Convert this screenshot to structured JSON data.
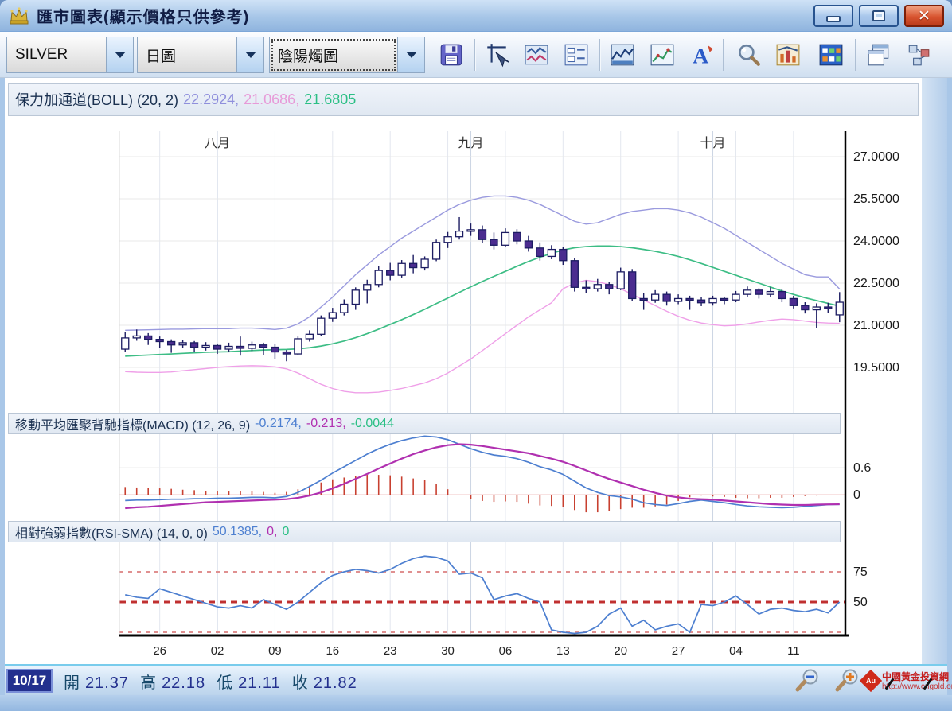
{
  "window": {
    "title": "匯市圖表(顯示價格只供參考)",
    "buttons": {
      "minimize": "minimize",
      "maximize": "maximize",
      "close": "close"
    }
  },
  "toolbar": {
    "symbol_select": "SILVER",
    "period_select": "日圖",
    "chart_type_select": "陰陽燭圖",
    "icons": [
      "save",
      "crosshair-draw",
      "indicator-lines",
      "data-table",
      "area-chart",
      "line-chart",
      "text-annotation",
      "magnifier",
      "pattern-chart",
      "grid-view",
      "cascade-windows",
      "layout-tree"
    ]
  },
  "indicators": {
    "boll": {
      "label": "保力加通道(BOLL) (20, 2)",
      "values": [
        "22.2924,",
        "21.0686,",
        "21.6805"
      ]
    },
    "macd": {
      "label": "移動平均匯聚背馳指標(MACD) (12, 26, 9)",
      "values": [
        "-0.2174,",
        "-0.213,",
        "-0.0044"
      ]
    },
    "rsi": {
      "label": "相對強弱指數(RSI-SMA) (14, 0, 0)",
      "values": [
        "50.1385,",
        "0,",
        "0"
      ]
    }
  },
  "status": {
    "date": "10/17",
    "open_label": "開",
    "open": "21.37",
    "high_label": "高",
    "high": "22.18",
    "low_label": "低",
    "low": "21.11",
    "close_label": "收",
    "close": "21.82"
  },
  "watermark": {
    "badge": "Au",
    "line1": "中國黃金投資網",
    "line2": "http://www.cngold.org"
  },
  "chart_data": {
    "type": "candlestick",
    "symbol": "SILVER",
    "period": "daily",
    "months": [
      {
        "label": "八月",
        "index": 8
      },
      {
        "label": "九月",
        "index": 30
      },
      {
        "label": "十月",
        "index": 51
      }
    ],
    "x_ticks": [
      {
        "label": "26",
        "index": 3
      },
      {
        "label": "02",
        "index": 8
      },
      {
        "label": "09",
        "index": 13
      },
      {
        "label": "16",
        "index": 18
      },
      {
        "label": "23",
        "index": 23
      },
      {
        "label": "30",
        "index": 28
      },
      {
        "label": "06",
        "index": 33
      },
      {
        "label": "13",
        "index": 38
      },
      {
        "label": "20",
        "index": 43
      },
      {
        "label": "27",
        "index": 48
      },
      {
        "label": "04",
        "index": 53
      },
      {
        "label": "11",
        "index": 58
      }
    ],
    "price_axis": {
      "ticks": [
        {
          "label": "27.0000",
          "value": 27.0
        },
        {
          "label": "25.5000",
          "value": 25.5
        },
        {
          "label": "24.0000",
          "value": 24.0
        },
        {
          "label": "22.5000",
          "value": 22.5
        },
        {
          "label": "21.0000",
          "value": 21.0
        },
        {
          "label": "19.5000",
          "value": 19.5
        }
      ]
    },
    "candles": [
      [
        20.15,
        20.75,
        20.05,
        20.55
      ],
      [
        20.55,
        20.85,
        20.45,
        20.62
      ],
      [
        20.62,
        20.72,
        20.3,
        20.5
      ],
      [
        20.5,
        20.6,
        20.18,
        20.42
      ],
      [
        20.42,
        20.5,
        20.02,
        20.3
      ],
      [
        20.3,
        20.48,
        20.2,
        20.38
      ],
      [
        20.38,
        20.44,
        20.05,
        20.22
      ],
      [
        20.22,
        20.4,
        20.1,
        20.28
      ],
      [
        20.28,
        20.35,
        19.98,
        20.15
      ],
      [
        20.15,
        20.38,
        20.05,
        20.25
      ],
      [
        20.25,
        20.6,
        19.92,
        20.18
      ],
      [
        20.18,
        20.42,
        20.08,
        20.3
      ],
      [
        20.3,
        20.38,
        19.95,
        20.22
      ],
      [
        20.22,
        20.35,
        19.8,
        20.05
      ],
      [
        20.05,
        20.12,
        19.72,
        19.98
      ],
      [
        19.98,
        20.6,
        19.95,
        20.52
      ],
      [
        20.52,
        20.82,
        20.42,
        20.68
      ],
      [
        20.68,
        21.35,
        20.62,
        21.25
      ],
      [
        21.25,
        21.62,
        21.12,
        21.45
      ],
      [
        21.45,
        21.92,
        21.35,
        21.75
      ],
      [
        21.75,
        22.35,
        21.55,
        22.25
      ],
      [
        22.25,
        22.62,
        21.78,
        22.45
      ],
      [
        22.45,
        23.1,
        22.35,
        22.95
      ],
      [
        22.95,
        23.22,
        22.6,
        22.78
      ],
      [
        22.78,
        23.32,
        22.7,
        23.2
      ],
      [
        23.2,
        23.5,
        22.85,
        23.05
      ],
      [
        23.05,
        23.45,
        22.95,
        23.35
      ],
      [
        23.35,
        24.05,
        23.28,
        23.95
      ],
      [
        23.95,
        24.32,
        23.75,
        24.15
      ],
      [
        24.15,
        24.85,
        24.05,
        24.35
      ],
      [
        24.35,
        24.62,
        24.18,
        24.4
      ],
      [
        24.4,
        24.55,
        23.92,
        24.05
      ],
      [
        24.05,
        24.3,
        23.7,
        23.85
      ],
      [
        23.85,
        24.45,
        23.78,
        24.3
      ],
      [
        24.3,
        24.42,
        23.88,
        24.0
      ],
      [
        24.0,
        24.18,
        23.62,
        23.75
      ],
      [
        23.75,
        23.95,
        23.3,
        23.45
      ],
      [
        23.45,
        23.85,
        23.35,
        23.7
      ],
      [
        23.7,
        23.8,
        23.15,
        23.3
      ],
      [
        23.3,
        23.4,
        22.2,
        22.35
      ],
      [
        22.35,
        22.6,
        22.15,
        22.3
      ],
      [
        22.3,
        22.65,
        22.2,
        22.45
      ],
      [
        22.45,
        22.55,
        22.1,
        22.3
      ],
      [
        22.3,
        23.05,
        22.25,
        22.9
      ],
      [
        22.9,
        23.0,
        21.85,
        21.95
      ],
      [
        21.95,
        22.15,
        21.55,
        21.9
      ],
      [
        21.9,
        22.25,
        21.8,
        22.1
      ],
      [
        22.1,
        22.2,
        21.7,
        21.85
      ],
      [
        21.85,
        22.1,
        21.75,
        21.95
      ],
      [
        21.95,
        22.05,
        21.55,
        21.9
      ],
      [
        21.9,
        22.0,
        21.68,
        21.8
      ],
      [
        21.8,
        22.05,
        21.7,
        21.95
      ],
      [
        21.95,
        22.02,
        21.75,
        21.9
      ],
      [
        21.9,
        22.22,
        21.82,
        22.1
      ],
      [
        22.1,
        22.38,
        22.02,
        22.25
      ],
      [
        22.25,
        22.32,
        21.95,
        22.1
      ],
      [
        22.1,
        22.35,
        22.0,
        22.2
      ],
      [
        22.2,
        22.28,
        21.82,
        21.95
      ],
      [
        21.95,
        22.05,
        21.6,
        21.7
      ],
      [
        21.7,
        21.82,
        21.42,
        21.55
      ],
      [
        21.55,
        21.78,
        20.9,
        21.65
      ],
      [
        21.65,
        21.8,
        21.45,
        21.6
      ],
      [
        21.37,
        22.18,
        21.11,
        21.82
      ]
    ],
    "boll": {
      "period": 20,
      "dev": 2,
      "current": {
        "upper": 22.2924,
        "lower": 21.0686,
        "middle": 21.6805
      },
      "upper": [
        20.82,
        20.83,
        20.84,
        20.85,
        20.86,
        20.86,
        20.87,
        20.88,
        20.88,
        20.88,
        20.9,
        20.9,
        20.88,
        20.85,
        20.9,
        21.05,
        21.3,
        21.65,
        22.0,
        22.4,
        22.8,
        23.15,
        23.5,
        23.8,
        24.1,
        24.35,
        24.6,
        24.85,
        25.1,
        25.3,
        25.45,
        25.55,
        25.6,
        25.6,
        25.55,
        25.45,
        25.3,
        25.1,
        24.9,
        24.7,
        24.6,
        24.65,
        24.8,
        24.95,
        25.05,
        25.1,
        25.15,
        25.15,
        25.1,
        25.0,
        24.85,
        24.65,
        24.45,
        24.2,
        23.95,
        23.7,
        23.45,
        23.2,
        23.0,
        22.8,
        22.72,
        22.72,
        22.29
      ],
      "middle": [
        19.9,
        19.92,
        19.94,
        19.96,
        19.98,
        20.0,
        20.02,
        20.04,
        20.05,
        20.06,
        20.08,
        20.1,
        20.12,
        20.13,
        20.14,
        20.16,
        20.2,
        20.26,
        20.34,
        20.44,
        20.56,
        20.7,
        20.86,
        21.03,
        21.2,
        21.38,
        21.57,
        21.77,
        21.97,
        22.17,
        22.37,
        22.56,
        22.74,
        22.92,
        23.1,
        23.27,
        23.42,
        23.56,
        23.68,
        23.76,
        23.8,
        23.82,
        23.82,
        23.8,
        23.76,
        23.7,
        23.63,
        23.55,
        23.45,
        23.33,
        23.2,
        23.06,
        22.92,
        22.78,
        22.64,
        22.5,
        22.36,
        22.22,
        22.1,
        21.98,
        21.88,
        21.78,
        21.68
      ],
      "lower": [
        19.35,
        19.33,
        19.32,
        19.32,
        19.34,
        19.38,
        19.42,
        19.46,
        19.5,
        19.53,
        19.55,
        19.56,
        19.55,
        19.52,
        19.45,
        19.3,
        19.1,
        18.9,
        18.75,
        18.65,
        18.6,
        18.6,
        18.62,
        18.68,
        18.75,
        18.85,
        18.95,
        19.1,
        19.3,
        19.55,
        19.8,
        20.1,
        20.4,
        20.7,
        21.0,
        21.3,
        21.55,
        21.8,
        22.3,
        22.5,
        22.6,
        22.55,
        22.45,
        22.3,
        22.1,
        21.9,
        21.7,
        21.5,
        21.32,
        21.18,
        21.08,
        21.02,
        20.98,
        21.0,
        21.05,
        21.12,
        21.18,
        21.22,
        21.2,
        21.15,
        21.1,
        21.08,
        21.07
      ]
    },
    "macd_axis": {
      "ticks": [
        {
          "label": "0.6",
          "value": 0.6
        },
        {
          "label": "0",
          "value": 0
        }
      ]
    },
    "macd": {
      "params": [
        12,
        26,
        9
      ],
      "current": {
        "macd": -0.2174,
        "signal": -0.213,
        "hist": -0.0044
      },
      "macd": [
        -0.13,
        -0.12,
        -0.12,
        -0.11,
        -0.1,
        -0.1,
        -0.09,
        -0.09,
        -0.08,
        -0.08,
        -0.07,
        -0.06,
        -0.06,
        -0.07,
        -0.04,
        0.05,
        0.18,
        0.32,
        0.48,
        0.62,
        0.76,
        0.9,
        1.02,
        1.12,
        1.2,
        1.26,
        1.3,
        1.28,
        1.22,
        1.12,
        1.02,
        0.94,
        0.88,
        0.85,
        0.8,
        0.72,
        0.62,
        0.55,
        0.45,
        0.3,
        0.15,
        0.05,
        -0.02,
        -0.05,
        -0.1,
        -0.18,
        -0.22,
        -0.24,
        -0.2,
        -0.15,
        -0.12,
        -0.15,
        -0.18,
        -0.22,
        -0.25,
        -0.27,
        -0.28,
        -0.29,
        -0.28,
        -0.26,
        -0.24,
        -0.22,
        -0.2174
      ],
      "signal": [
        -0.3,
        -0.28,
        -0.27,
        -0.25,
        -0.23,
        -0.21,
        -0.19,
        -0.17,
        -0.16,
        -0.15,
        -0.14,
        -0.13,
        -0.12,
        -0.11,
        -0.1,
        -0.07,
        -0.02,
        0.05,
        0.14,
        0.24,
        0.35,
        0.46,
        0.58,
        0.69,
        0.8,
        0.9,
        0.98,
        1.05,
        1.1,
        1.12,
        1.11,
        1.08,
        1.04,
        1.0,
        0.96,
        0.92,
        0.86,
        0.8,
        0.73,
        0.64,
        0.54,
        0.44,
        0.35,
        0.27,
        0.19,
        0.11,
        0.04,
        -0.02,
        -0.06,
        -0.09,
        -0.1,
        -0.11,
        -0.13,
        -0.15,
        -0.17,
        -0.19,
        -0.21,
        -0.22,
        -0.23,
        -0.23,
        -0.22,
        -0.215,
        -0.213
      ]
    },
    "rsi_axis": {
      "ticks": [
        {
          "label": "75",
          "value": 75
        },
        {
          "label": "50",
          "value": 50
        }
      ]
    },
    "rsi": {
      "params": [
        14,
        0,
        0
      ],
      "current": 50.1385,
      "levels": [
        {
          "value": 75,
          "emphasis": "light"
        },
        {
          "value": 50,
          "emphasis": "strong"
        },
        {
          "value": 25,
          "emphasis": "light"
        }
      ],
      "values": [
        56,
        54,
        53,
        61,
        58,
        55,
        52,
        49,
        46,
        45,
        47,
        45,
        52,
        48,
        44,
        50,
        58,
        66,
        72,
        75,
        77,
        76,
        74,
        77,
        82,
        86,
        88,
        87,
        84,
        73,
        74,
        70,
        52,
        55,
        57,
        53,
        50,
        27,
        25,
        24,
        25,
        30,
        40,
        45,
        30,
        35,
        27,
        30,
        32,
        25,
        48,
        47,
        50,
        55,
        48,
        40,
        44,
        45,
        43,
        42,
        44,
        41,
        50
      ]
    },
    "colors": {
      "bull_body": "#ffffff",
      "bear_body": "#4b2c8f",
      "candle_outline": "#1c1c62",
      "boll_upper": "#9a9ade",
      "boll_middle": "#3dbd85",
      "boll_lower": "#efa0e8",
      "macd_line": "#4d7fd0",
      "signal_line": "#b030b0",
      "histogram": "#c84030",
      "rsi_line": "#4d7fd0",
      "level_strong": "#c03030",
      "level_light": "#e09090",
      "value_upper": "#8f8fdc",
      "value_lower": "#e79ad8",
      "value_middle": "#2bbf85",
      "value_macd": "#4d7fd0",
      "value_signal": "#b030b0",
      "value_hist": "#2bbf85"
    }
  }
}
